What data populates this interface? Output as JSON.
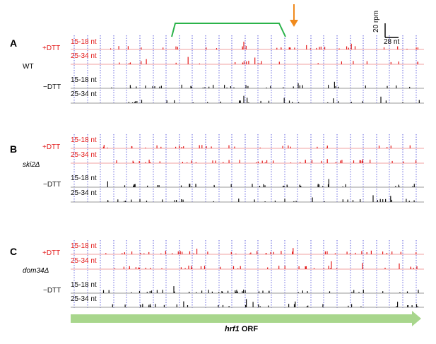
{
  "panels": [
    {
      "letter": "A",
      "strain": "WT",
      "italic": false
    },
    {
      "letter": "B",
      "strain": "ski2Δ",
      "italic": true
    },
    {
      "letter": "C",
      "strain": "dom34Δ",
      "italic": true
    }
  ],
  "conditions": {
    "plus": "+DTT",
    "minus": "−DTT"
  },
  "tracks": {
    "short": "15-18 nt",
    "long": "25-34 nt"
  },
  "scale_bar": {
    "y_label": "20 rpm",
    "x_label": "28 nt"
  },
  "orf": {
    "gene": "hrf1",
    "suffix": " ORF"
  },
  "colors": {
    "plus_dtt": "#e31b1b",
    "minus_dtt": "#111111",
    "codon_grid": "#3b3bd6",
    "orf_arrow": "#a8d68c",
    "bracket": "#2bb34a",
    "arrow_marker": "#f08a1c"
  }
}
